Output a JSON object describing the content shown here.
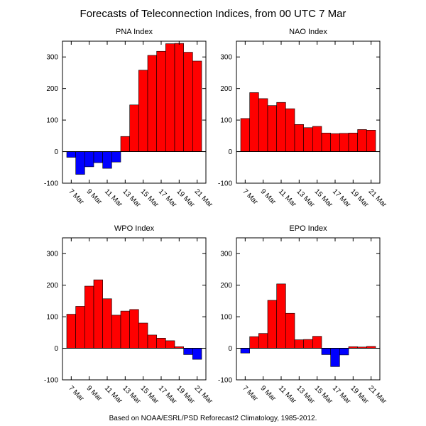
{
  "title": "Forecasts of Teleconnection Indices, from 00 UTC 7 Mar",
  "footer": "Based on NOAA/ESRL/PSD Reforecast2 Climatology, 1985-2012.",
  "colors": {
    "positive": "#ff0000",
    "negative": "#0000ff",
    "edge": "#000000"
  },
  "chart_data": [
    {
      "type": "bar",
      "title": "PNA Index",
      "categories": [
        "7 Mar",
        "8 Mar",
        "9 Mar",
        "10 Mar",
        "11 Mar",
        "12 Mar",
        "13 Mar",
        "14 Mar",
        "15 Mar",
        "16 Mar",
        "17 Mar",
        "18 Mar",
        "19 Mar",
        "20 Mar",
        "21 Mar"
      ],
      "values": [
        -18,
        -72,
        -48,
        -35,
        -53,
        -33,
        48,
        148,
        258,
        305,
        318,
        342,
        343,
        315,
        287
      ],
      "tick_labels": [
        "7 Mar",
        "9 Mar",
        "11 Mar",
        "13 Mar",
        "15 Mar",
        "17 Mar",
        "19 Mar",
        "21 Mar"
      ],
      "yticks": [
        -100,
        0,
        100,
        200,
        300
      ],
      "ylim": [
        -100,
        350
      ]
    },
    {
      "type": "bar",
      "title": "NAO Index",
      "categories": [
        "7 Mar",
        "8 Mar",
        "9 Mar",
        "10 Mar",
        "11 Mar",
        "12 Mar",
        "13 Mar",
        "14 Mar",
        "15 Mar",
        "16 Mar",
        "17 Mar",
        "18 Mar",
        "19 Mar",
        "20 Mar",
        "21 Mar"
      ],
      "values": [
        105,
        187,
        168,
        146,
        156,
        136,
        86,
        76,
        80,
        59,
        57,
        58,
        59,
        70,
        68
      ],
      "tick_labels": [
        "7 Mar",
        "9 Mar",
        "11 Mar",
        "13 Mar",
        "15 Mar",
        "17 Mar",
        "19 Mar",
        "21 Mar"
      ],
      "yticks": [
        -100,
        0,
        100,
        200,
        300
      ],
      "ylim": [
        -100,
        350
      ]
    },
    {
      "type": "bar",
      "title": "WPO Index",
      "categories": [
        "7 Mar",
        "8 Mar",
        "9 Mar",
        "10 Mar",
        "11 Mar",
        "12 Mar",
        "13 Mar",
        "14 Mar",
        "15 Mar",
        "16 Mar",
        "17 Mar",
        "18 Mar",
        "19 Mar",
        "20 Mar",
        "21 Mar"
      ],
      "values": [
        108,
        133,
        197,
        217,
        157,
        105,
        118,
        123,
        80,
        42,
        32,
        24,
        5,
        -20,
        -35
      ],
      "tick_labels": [
        "7 Mar",
        "9 Mar",
        "11 Mar",
        "13 Mar",
        "15 Mar",
        "17 Mar",
        "19 Mar",
        "21 Mar"
      ],
      "yticks": [
        -100,
        0,
        100,
        200,
        300
      ],
      "ylim": [
        -100,
        350
      ]
    },
    {
      "type": "bar",
      "title": "EPO Index",
      "categories": [
        "7 Mar",
        "8 Mar",
        "9 Mar",
        "10 Mar",
        "11 Mar",
        "12 Mar",
        "13 Mar",
        "14 Mar",
        "15 Mar",
        "16 Mar",
        "17 Mar",
        "18 Mar",
        "19 Mar",
        "20 Mar",
        "21 Mar"
      ],
      "values": [
        -15,
        37,
        47,
        152,
        204,
        111,
        27,
        28,
        38,
        -20,
        -58,
        -21,
        5,
        4,
        6
      ],
      "tick_labels": [
        "7 Mar",
        "9 Mar",
        "11 Mar",
        "13 Mar",
        "15 Mar",
        "17 Mar",
        "19 Mar",
        "21 Mar"
      ],
      "yticks": [
        -100,
        0,
        100,
        200,
        300
      ],
      "ylim": [
        -100,
        350
      ]
    }
  ]
}
